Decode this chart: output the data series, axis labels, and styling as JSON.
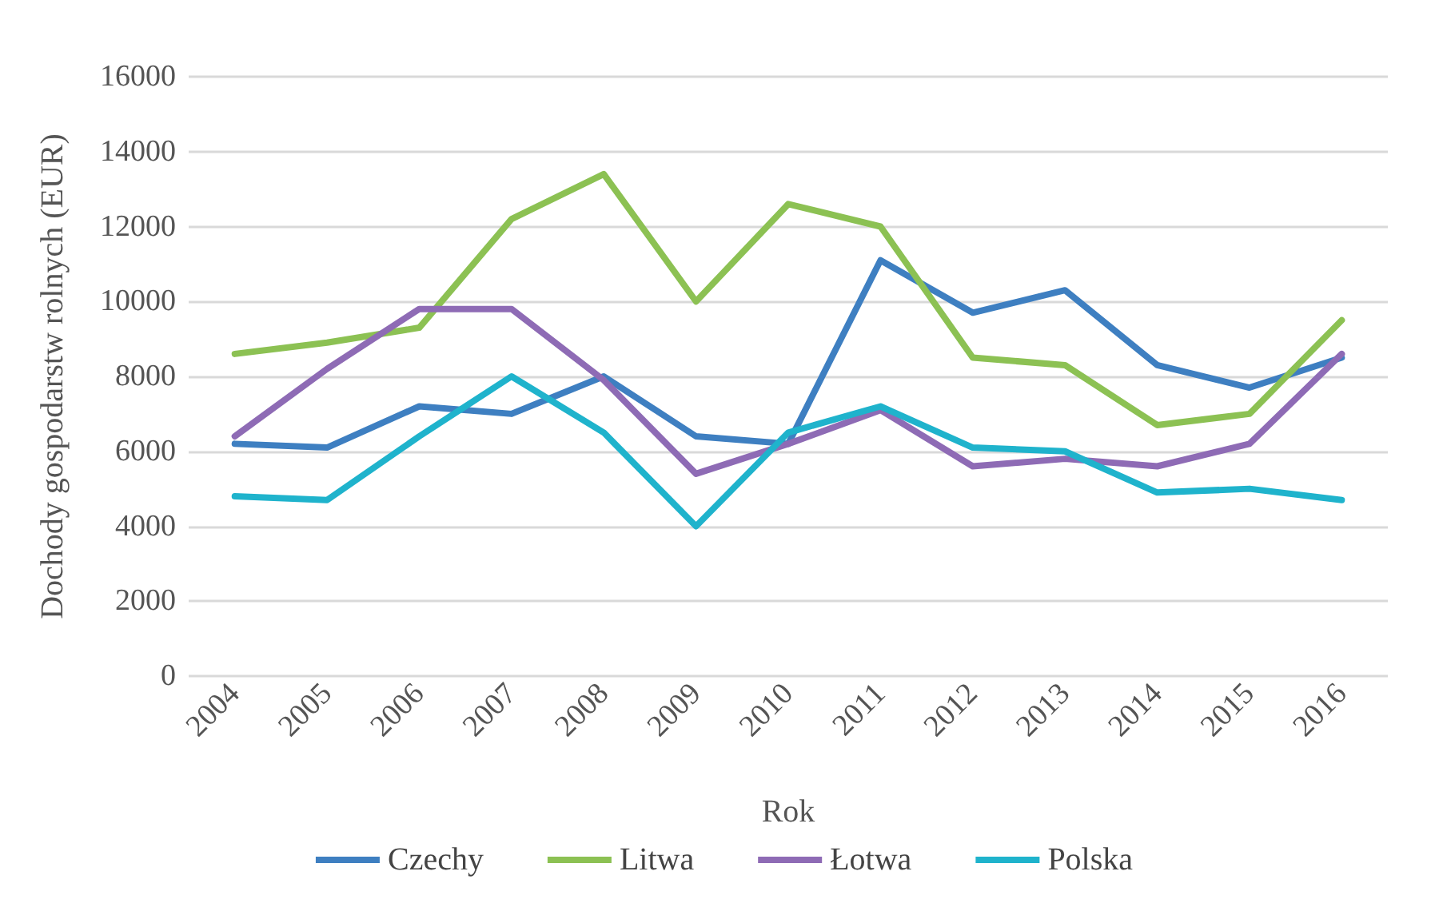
{
  "chart_data": {
    "type": "line",
    "xlabel": "Rok",
    "ylabel": "Dochody gospodarstw rolnych (EUR)",
    "categories": [
      "2004",
      "2005",
      "2006",
      "2007",
      "2008",
      "2009",
      "2010",
      "2011",
      "2012",
      "2013",
      "2014",
      "2015",
      "2016"
    ],
    "series": [
      {
        "name": "Czechy",
        "color": "#3e7fc1",
        "values": [
          6200,
          6100,
          7200,
          7000,
          8000,
          6400,
          6200,
          11100,
          9700,
          10300,
          8300,
          7700,
          8500
        ]
      },
      {
        "name": "Litwa",
        "color": "#8cc153",
        "values": [
          8600,
          8900,
          9300,
          12200,
          13400,
          10000,
          12600,
          12000,
          8500,
          8300,
          6700,
          7000,
          9500
        ]
      },
      {
        "name": "Łotwa",
        "color": "#8e6bb5",
        "values": [
          6400,
          8200,
          9800,
          9800,
          7900,
          5400,
          6200,
          7100,
          5600,
          5800,
          5600,
          6200,
          8600
        ]
      },
      {
        "name": "Polska",
        "color": "#1fb3cc",
        "values": [
          4800,
          4700,
          6400,
          8000,
          6500,
          4000,
          6500,
          7200,
          6100,
          6000,
          4900,
          5000,
          4700
        ]
      }
    ],
    "ylim": [
      0,
      16000
    ],
    "yticks": [
      0,
      2000,
      4000,
      6000,
      8000,
      10000,
      12000,
      14000,
      16000
    ],
    "grid": "y",
    "legend": "bottom",
    "marker": "none",
    "line_style": "solid"
  }
}
